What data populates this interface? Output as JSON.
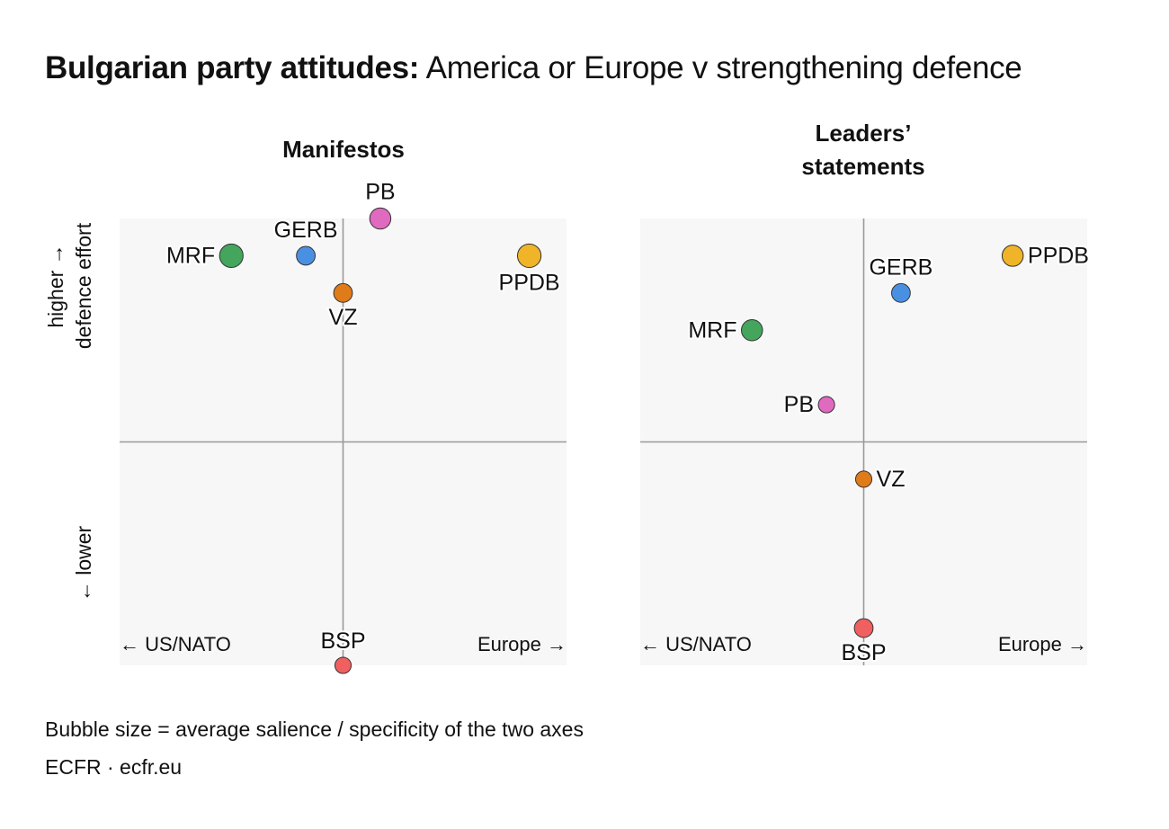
{
  "title": {
    "bold": "Bulgarian party attitudes:",
    "rest": "America or Europe v strengthening defence"
  },
  "y_axis": {
    "upper": "higher →",
    "lower_line": "defence effort",
    "bottom": "← lower"
  },
  "footer": {
    "note": "Bubble size = average salience / specificity of the two axes",
    "source": "ECFR · ecfr.eu"
  },
  "colors": {
    "panel_bg": "#f7f7f7",
    "axis": "#999999",
    "MRF": "#44a55c",
    "GERB": "#4a90e2",
    "PB": "#e06ac0",
    "PPDB": "#f0b428",
    "VZ": "#e07b1a",
    "BSP": "#f06060"
  },
  "chart_data": [
    {
      "type": "scatter",
      "title": "Manifestos",
      "xlabel_left": "← US/NATO",
      "xlabel_right": "Europe →",
      "xlim": [
        -3,
        3
      ],
      "ylim": [
        -3,
        3
      ],
      "points": [
        {
          "party": "MRF",
          "x": -1.5,
          "y": 2.5,
          "size": 3,
          "label_pos": "left"
        },
        {
          "party": "GERB",
          "x": -0.5,
          "y": 2.5,
          "size": 2,
          "label_pos": "above"
        },
        {
          "party": "PB",
          "x": 0.5,
          "y": 3.0,
          "size": 2.5,
          "label_pos": "above"
        },
        {
          "party": "PPDB",
          "x": 2.5,
          "y": 2.5,
          "size": 3,
          "label_pos": "below"
        },
        {
          "party": "VZ",
          "x": 0.0,
          "y": 2.0,
          "size": 2,
          "label_pos": "below"
        },
        {
          "party": "BSP",
          "x": 0.0,
          "y": -3.0,
          "size": 1.5,
          "label_pos": "above"
        }
      ]
    },
    {
      "type": "scatter",
      "title": "Leaders’ statements",
      "title_lines": [
        "Leaders’",
        "statements"
      ],
      "xlabel_left": "← US/NATO",
      "xlabel_right": "Europe →",
      "xlim": [
        -3,
        3
      ],
      "ylim": [
        -3,
        3
      ],
      "points": [
        {
          "party": "GERB",
          "x": 0.5,
          "y": 2.0,
          "size": 2,
          "label_pos": "above"
        },
        {
          "party": "PPDB",
          "x": 2.0,
          "y": 2.5,
          "size": 2.5,
          "label_pos": "right"
        },
        {
          "party": "MRF",
          "x": -1.5,
          "y": 1.5,
          "size": 2.5,
          "label_pos": "left"
        },
        {
          "party": "PB",
          "x": -0.5,
          "y": 0.5,
          "size": 1.5,
          "label_pos": "left"
        },
        {
          "party": "VZ",
          "x": 0.0,
          "y": -0.5,
          "size": 1.5,
          "label_pos": "right"
        },
        {
          "party": "BSP",
          "x": 0.0,
          "y": -2.5,
          "size": 2,
          "label_pos": "below"
        }
      ]
    }
  ]
}
